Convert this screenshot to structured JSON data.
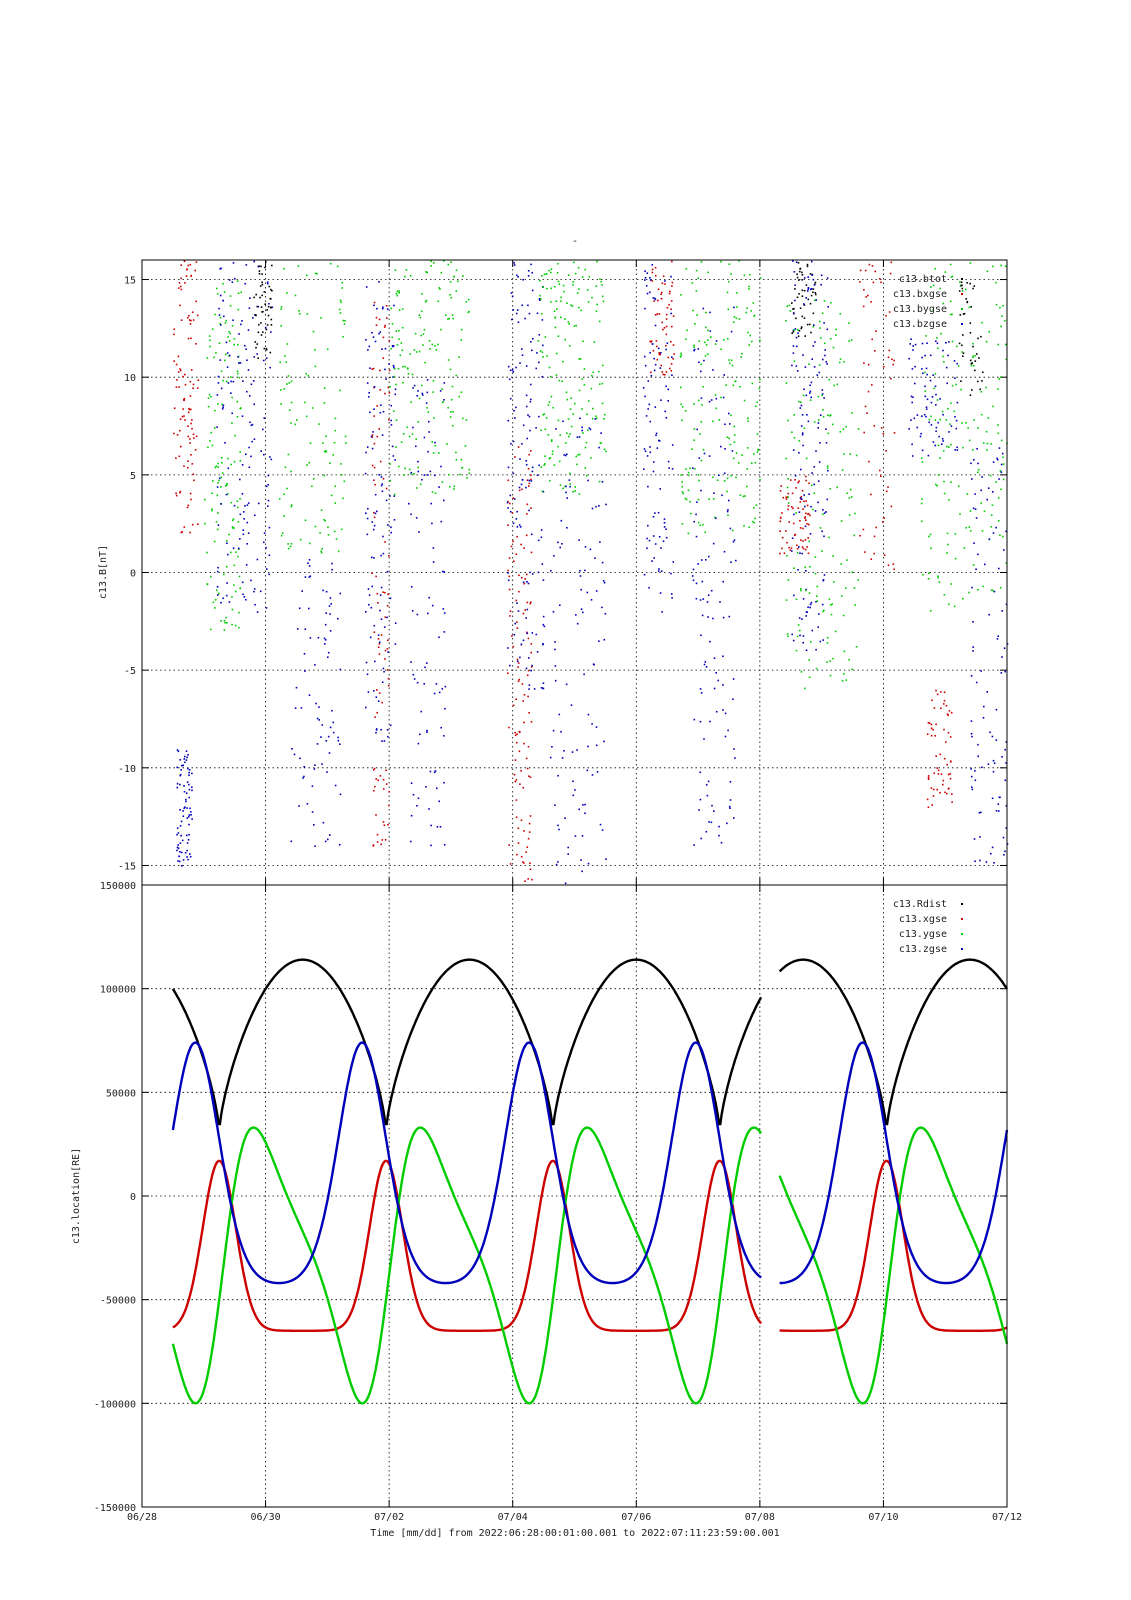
{
  "figure": {
    "title": "-",
    "xlabel": "Time [mm/dd]  from 2022:06:28:00:01:00.001  to  2022:07:11:23:59:00.001"
  },
  "chart_data": [
    {
      "type": "scatter",
      "ylabel": "c13.B[nT]",
      "xlim_days": [
        0,
        14
      ],
      "ylim": [
        -16,
        16
      ],
      "x_ticks": [
        "06/28",
        "06/30",
        "07/02",
        "07/04",
        "07/06",
        "07/08",
        "07/10",
        "07/12"
      ],
      "y_ticks": [
        "15",
        "10",
        "5",
        "0",
        "-5",
        "-10",
        "-15"
      ],
      "grid": true,
      "legend_position": "top-right",
      "series": [
        {
          "name": "c13.btot",
          "color": "#000000"
        },
        {
          "name": "c13.bxgse",
          "color": "#cc0000"
        },
        {
          "name": "c13.bygse",
          "color": "#00cc00"
        },
        {
          "name": "c13.bzgse",
          "color": "#0000bb"
        }
      ]
    },
    {
      "type": "line",
      "ylabel": "c13.location[RE]",
      "xlim_days": [
        0,
        14
      ],
      "ylim": [
        -150000,
        150000
      ],
      "x_ticks": [
        "06/28",
        "06/30",
        "07/02",
        "07/04",
        "07/06",
        "07/08",
        "07/10",
        "07/12"
      ],
      "y_ticks": [
        "150000",
        "100000",
        "50000",
        "0",
        "-50000",
        "-100000",
        "-150000"
      ],
      "grid": true,
      "legend_position": "top-right",
      "series": [
        {
          "name": "c13.Rdist",
          "color": "#000000",
          "min": 31000,
          "max": 114000
        },
        {
          "name": "c13.xgse",
          "color": "#cc0000",
          "min": -65000,
          "max": 17000
        },
        {
          "name": "c13.ygse",
          "color": "#00cc00",
          "min": -100000,
          "max": 33000
        },
        {
          "name": "c13.zgse",
          "color": "#0000bb",
          "min": -42000,
          "max": 74000
        }
      ]
    }
  ]
}
